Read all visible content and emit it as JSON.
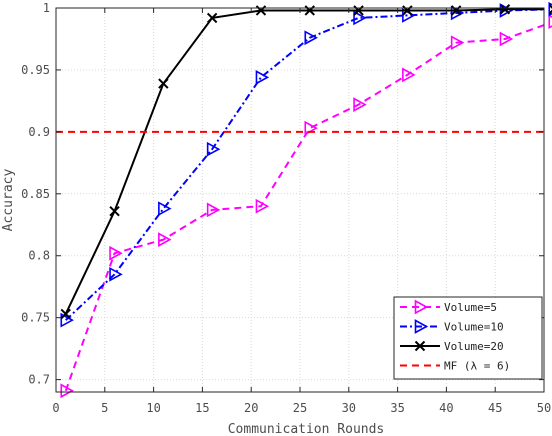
{
  "chart_data": {
    "type": "line",
    "xlabel": "Communication Rounds",
    "ylabel": "Accuracy",
    "xlim": [
      0,
      50
    ],
    "ylim": [
      0.69,
      1.0
    ],
    "xticks": [
      0,
      5,
      10,
      15,
      20,
      25,
      30,
      35,
      40,
      45,
      50
    ],
    "yticks": [
      0.7,
      0.75,
      0.8,
      0.85,
      0.9,
      0.95,
      1
    ],
    "xtick_labels": [
      "0",
      "5",
      "10",
      "15",
      "20",
      "25",
      "30",
      "35",
      "40",
      "45",
      "50"
    ],
    "ytick_labels": [
      "0.7",
      "0.75",
      "0.8",
      "0.85",
      "0.9",
      "0.95",
      "1"
    ],
    "grid": true,
    "legend_position": "bottom-right",
    "series": [
      {
        "name": "Volume=5",
        "color": "#ff00ff",
        "style": "dashed",
        "marker": "triangle-right",
        "x": [
          1,
          6,
          11,
          16,
          21,
          26,
          31,
          36,
          41,
          46,
          51
        ],
        "y": [
          0.691,
          0.802,
          0.813,
          0.837,
          0.84,
          0.903,
          0.922,
          0.946,
          0.972,
          0.975,
          0.989
        ]
      },
      {
        "name": "Volume=10",
        "color": "#0000ff",
        "style": "dashdot",
        "marker": "triangle-right",
        "x": [
          1,
          6,
          11,
          16,
          21,
          26,
          31,
          36,
          41,
          46,
          51
        ],
        "y": [
          0.748,
          0.785,
          0.838,
          0.886,
          0.944,
          0.976,
          0.992,
          0.994,
          0.996,
          0.998,
          0.999
        ]
      },
      {
        "name": "Volume=20",
        "color": "#000000",
        "style": "solid",
        "marker": "x",
        "x": [
          1,
          6,
          11,
          16,
          21,
          26,
          31,
          36,
          41,
          46,
          51
        ],
        "y": [
          0.753,
          0.836,
          0.939,
          0.992,
          0.998,
          0.998,
          0.998,
          0.998,
          0.998,
          0.999,
          0.999
        ]
      },
      {
        "name": "MF  (λ = 6)",
        "color": "#ff0000",
        "style": "dashed",
        "marker": "none",
        "x": [
          0,
          51
        ],
        "y": [
          0.9,
          0.9
        ]
      }
    ]
  }
}
